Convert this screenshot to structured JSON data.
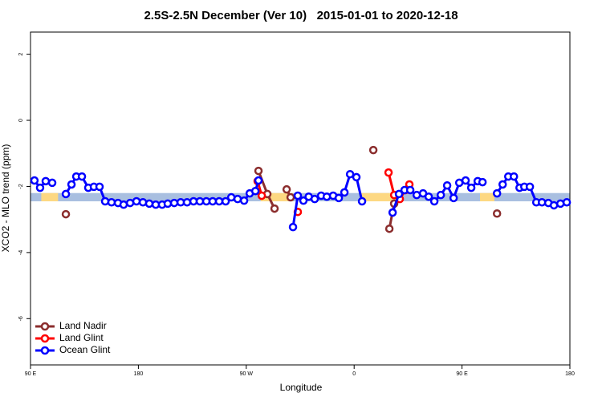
{
  "chart_data": {
    "type": "line",
    "title": "2.5S-2.5N December (Ver 10)   2015-01-01 to 2020-12-18",
    "x_label": "Longitude",
    "y_label": "XCO2 - MLO trend (ppm)",
    "xlim": [
      90,
      540
    ],
    "ylim": [
      -7.4,
      2.67
    ],
    "xticks": [
      {
        "value": 90,
        "label": "90 E"
      },
      180,
      {
        "value": 270,
        "label": "90 W"
      },
      {
        "value": 360,
        "label": "0"
      },
      {
        "value": 450,
        "label": "90 E"
      },
      {
        "value": 540,
        "label": "180"
      }
    ],
    "yticks": [
      2,
      0,
      -2,
      -4,
      -6
    ],
    "legend": "bottom-left",
    "band": {
      "ylim": [
        -2.45,
        -2.2
      ],
      "color": "#a9bfe0",
      "land_color": "#fdd882",
      "land_x": [
        [
          99,
          113
        ],
        [
          282,
          309
        ],
        [
          366,
          400
        ],
        [
          465,
          477
        ]
      ]
    },
    "series": [
      {
        "name": "Land Nadir",
        "color": "#8b2d2d",
        "x": [
          119.5,
          200,
          280.2,
          287.6,
          293.6,
          298,
          303.7,
          307.0,
          340,
          376.0,
          380,
          389.4,
          393.4,
          440,
          479.2
        ],
        "values": [
          -2.84,
          null,
          -1.53,
          -2.23,
          -2.67,
          null,
          -2.09,
          -2.33,
          null,
          -0.9,
          null,
          -3.28,
          -2.52,
          null,
          -2.82
        ]
      },
      {
        "name": "Land Glint",
        "color": "#ff0000",
        "x": [
          279.5,
          282.9,
          298,
          313.0,
          350,
          388.7,
          393.4,
          398.1,
          402.8,
          406.1
        ],
        "values": [
          -1.84,
          -2.28,
          null,
          -2.77,
          null,
          -1.58,
          -2.26,
          -2.38,
          -2.11,
          -1.94
        ]
      },
      {
        "name": "Ocean Glint",
        "color": "#0000ff",
        "x": [
          93.3,
          98.0,
          102.7,
          108.1,
          114,
          119.5,
          124.2,
          128.2,
          132.9,
          138.2,
          142.9,
          147.6,
          152.3,
          157.6,
          163.0,
          167.7,
          173.1,
          178.4,
          183.8,
          189.1,
          194.5,
          199.8,
          204.5,
          209.9,
          215.3,
          220.6,
          226.0,
          231.3,
          236.7,
          242.0,
          247.4,
          252.8,
          257.5,
          262.8,
          268.2,
          272.9,
          277.6,
          280.2,
          295,
          309.0,
          313.0,
          317.7,
          322.1,
          327.1,
          332.5,
          337.2,
          342.5,
          347.2,
          351.9,
          356.6,
          361.9,
          366.6,
          380,
          392.1,
          397.4,
          402.1,
          406.8,
          412.2,
          417.5,
          422.2,
          426.9,
          432.3,
          437.6,
          443.0,
          447.7,
          453.0,
          457.7,
          463.1,
          467.1,
          473,
          479.2,
          483.9,
          488.6,
          493.3,
          498.0,
          502.0,
          506.6,
          512.0,
          516.7,
          522.0,
          526.7,
          532.1,
          537.4
        ],
        "values": [
          -1.82,
          -2.04,
          -1.84,
          -1.89,
          null,
          -2.23,
          -1.94,
          -1.7,
          -1.7,
          -2.04,
          -2.01,
          -2.01,
          -2.45,
          -2.48,
          -2.5,
          -2.55,
          -2.5,
          -2.45,
          -2.48,
          -2.52,
          -2.55,
          -2.55,
          -2.52,
          -2.5,
          -2.48,
          -2.48,
          -2.45,
          -2.45,
          -2.45,
          -2.45,
          -2.45,
          -2.45,
          -2.33,
          -2.38,
          -2.43,
          -2.21,
          -2.14,
          -1.82,
          null,
          -3.23,
          -2.28,
          -2.43,
          -2.31,
          -2.38,
          -2.28,
          -2.31,
          -2.28,
          -2.35,
          -2.18,
          -1.63,
          -1.72,
          -2.45,
          null,
          -2.79,
          -2.23,
          -2.11,
          -2.11,
          -2.26,
          -2.21,
          -2.31,
          -2.45,
          -2.26,
          -1.97,
          -2.35,
          -1.89,
          -1.82,
          -2.04,
          -1.84,
          -1.87,
          null,
          -2.21,
          -1.94,
          -1.7,
          -1.7,
          -2.04,
          -2.01,
          -2.01,
          -2.48,
          -2.48,
          -2.5,
          -2.57,
          -2.52,
          -2.48
        ]
      }
    ]
  }
}
